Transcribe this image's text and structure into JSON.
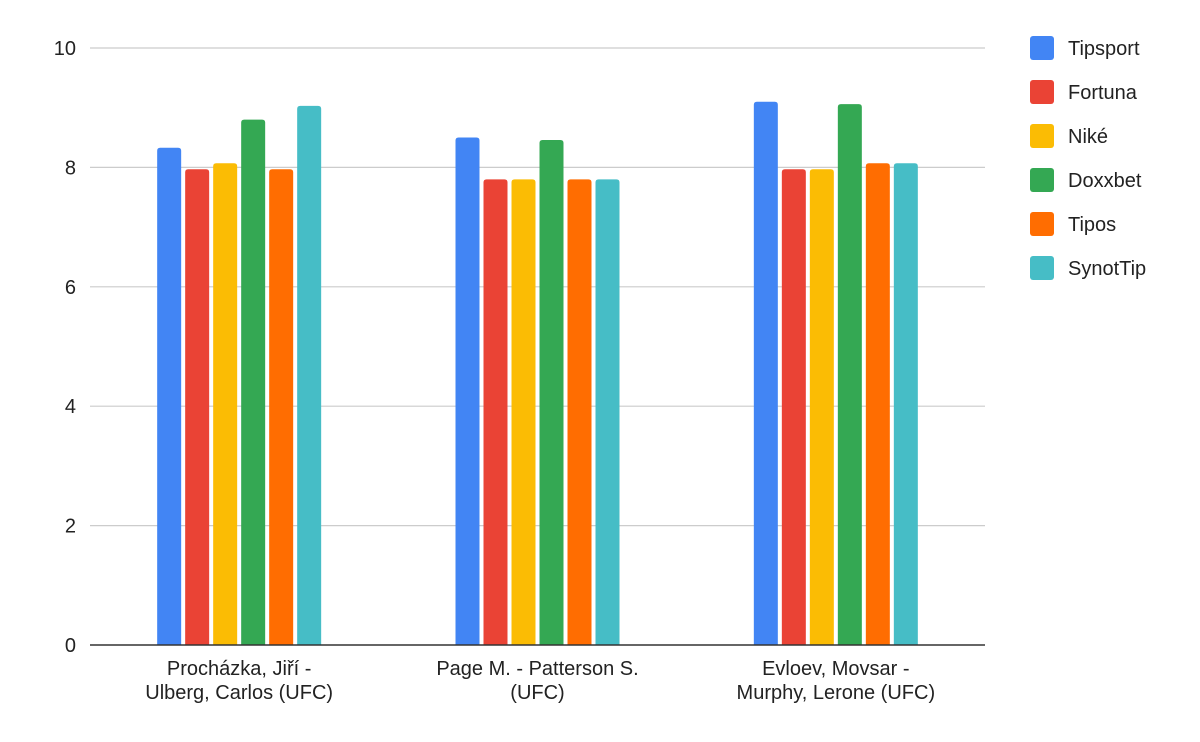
{
  "chart_data": {
    "type": "bar",
    "title": "",
    "xlabel": "",
    "ylabel": "",
    "ylim": [
      0,
      10
    ],
    "yticks": [
      0,
      2,
      4,
      6,
      8,
      10
    ],
    "grid": true,
    "legend_position": "right",
    "categories": [
      [
        "Procházka, Jiří -",
        "Ulberg, Carlos (UFC)"
      ],
      [
        "Page M. - Patterson S.",
        "(UFC)"
      ],
      [
        "Evloev, Movsar -",
        "Murphy, Lerone (UFC)"
      ]
    ],
    "series": [
      {
        "name": "Tipsport",
        "color": "#4285f4",
        "values": [
          8.33,
          8.5,
          9.1
        ]
      },
      {
        "name": "Fortuna",
        "color": "#ea4335",
        "values": [
          7.97,
          7.8,
          7.97
        ]
      },
      {
        "name": "Niké",
        "color": "#fbbc04",
        "values": [
          8.07,
          7.8,
          7.97
        ]
      },
      {
        "name": "Doxxbet",
        "color": "#34a853",
        "values": [
          8.8,
          8.46,
          9.06
        ]
      },
      {
        "name": "Tipos",
        "color": "#ff6d01",
        "values": [
          7.97,
          7.8,
          8.07
        ]
      },
      {
        "name": "SynotTip",
        "color": "#46bdc6",
        "values": [
          9.03,
          7.8,
          8.07
        ]
      }
    ]
  }
}
